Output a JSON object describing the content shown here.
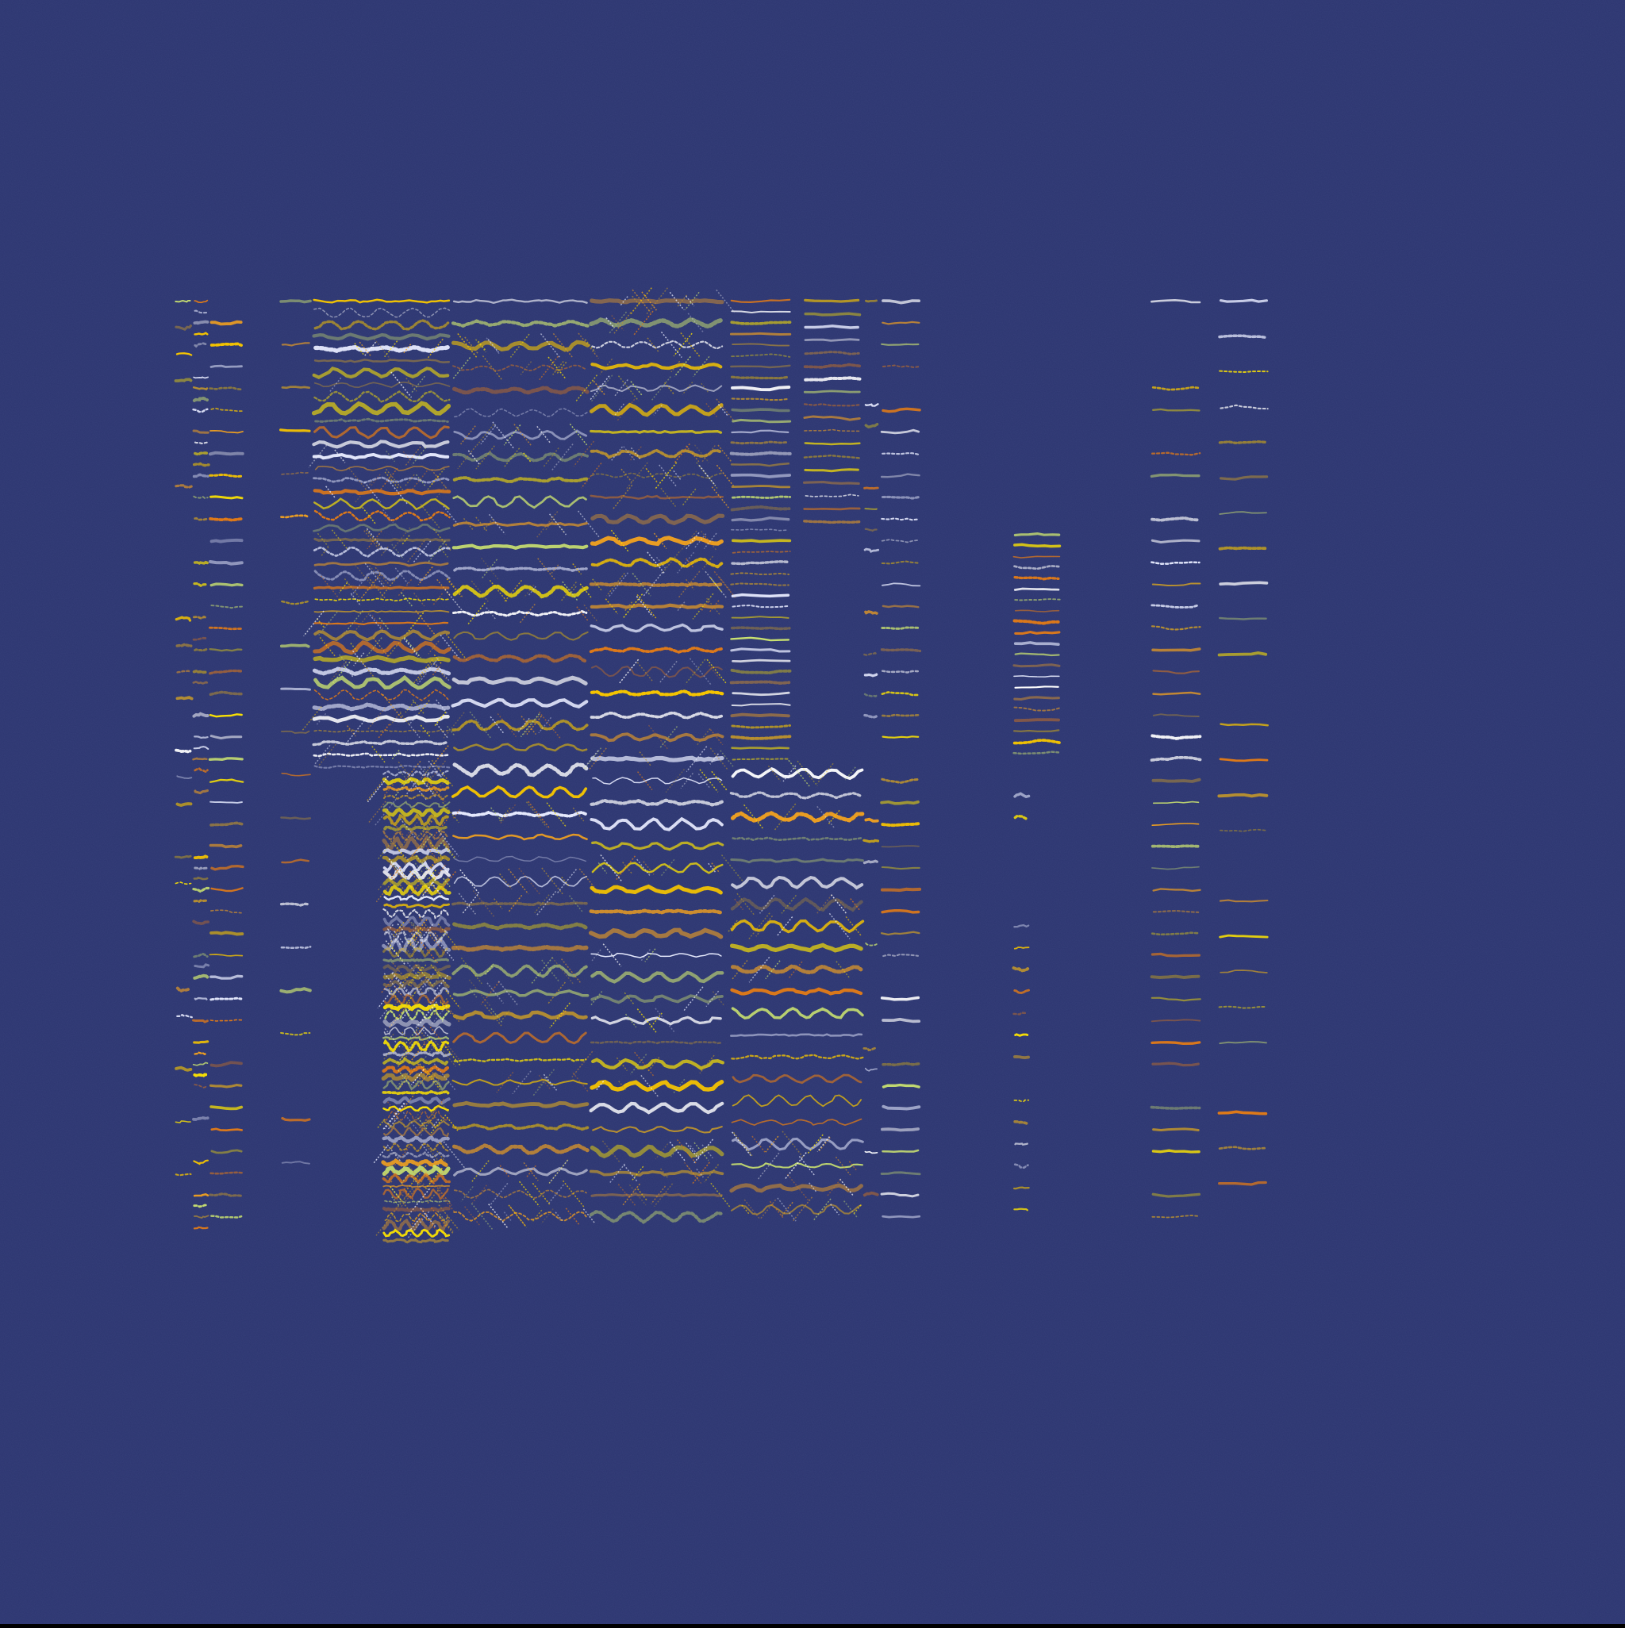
{
  "artwork": {
    "background_color": "#2c3570",
    "stroke_palette": [
      "#ffe600",
      "#f5c400",
      "#f0a020",
      "#e07a18",
      "#ffffff",
      "#e8ecff",
      "#c8e070",
      "#b89030"
    ],
    "mark_style": "horizontal zigzag strokes with diagonal hatching"
  }
}
